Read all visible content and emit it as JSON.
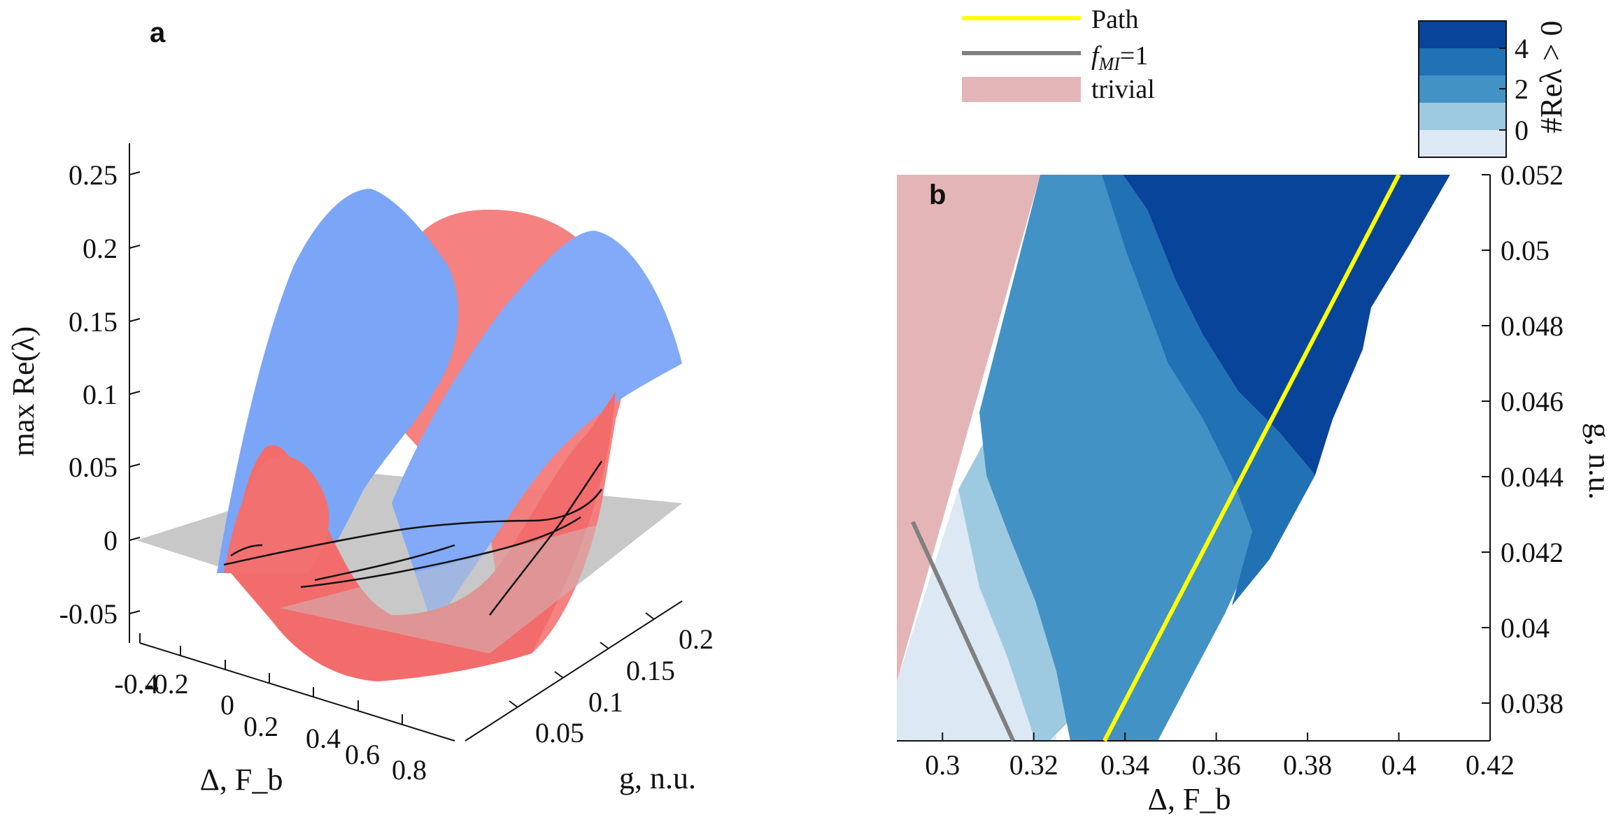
{
  "panel_a": {
    "letter": "a",
    "chart_data": {
      "type": "surface",
      "title": "",
      "zlabel": "max Re(λ)",
      "xlabel": "Δ, F_b",
      "ylabel": "g, n.u.",
      "x_ticks": [
        "-0.4",
        "-0.2",
        "0",
        "0.2",
        "0.4",
        "0.6",
        "0.8"
      ],
      "y_ticks": [
        "0.05",
        "0.1",
        "0.15",
        "0.2"
      ],
      "z_ticks": [
        "-0.05",
        "0",
        "0.05",
        "0.1",
        "0.15",
        "0.2",
        "0.25"
      ],
      "xlim": [
        -0.4,
        0.8
      ],
      "ylim": [
        0.0,
        0.22
      ],
      "zlim": [
        -0.07,
        0.27
      ],
      "zero_plane": 0,
      "surfaces": [
        {
          "name": "surface-1",
          "color": "#7aa3f5"
        },
        {
          "name": "surface-2",
          "color": "#f46f6f"
        }
      ],
      "plane_color": "#c8c8c8"
    }
  },
  "panel_b": {
    "letter": "b",
    "chart_data": {
      "type": "heatmap",
      "xlabel": "Δ, F_b",
      "ylabel": "g, n.u.",
      "xlim": [
        0.29,
        0.42
      ],
      "ylim": [
        0.037,
        0.052
      ],
      "x_ticks": [
        0.3,
        0.32,
        0.34,
        0.36,
        0.38,
        0.4,
        0.42
      ],
      "y_ticks": [
        0.038,
        0.04,
        0.042,
        0.044,
        0.046,
        0.048,
        0.05,
        0.052
      ],
      "x_tick_labels": [
        "0.3",
        "0.32",
        "0.34",
        "0.36",
        "0.38",
        "0.4",
        "0.42"
      ],
      "y_tick_labels": [
        "0.038",
        "0.04",
        "0.042",
        "0.044",
        "0.046",
        "0.048",
        "0.05",
        "0.052"
      ],
      "regions": {
        "trivial": {
          "color": "#e4b5b7"
        },
        "level0": {
          "color": "#dce8f4"
        },
        "level1": {
          "color": "#9ecae1"
        },
        "level2": {
          "color": "#4292c6"
        },
        "level3": {
          "color": "#2171b5"
        },
        "level4": {
          "color": "#08449a"
        }
      },
      "path_line": {
        "name": "Path",
        "color": "#ffff00",
        "points": [
          [
            0.3355,
            0.037
          ],
          [
            0.4,
            0.052
          ]
        ]
      },
      "fmi_line": {
        "name": "f_MI=1",
        "color": "#808080",
        "points": [
          [
            0.2935,
            0.0428
          ],
          [
            0.3155,
            0.037
          ]
        ]
      },
      "colorbar": {
        "label": "#Reλ > 0",
        "tick_labels": [
          "0",
          "2",
          "4"
        ],
        "colors": [
          "#dce8f4",
          "#9ecae1",
          "#4292c6",
          "#2171b5",
          "#08449a"
        ]
      },
      "legend": [
        {
          "label": "Path",
          "color": "#ffff00",
          "kind": "line"
        },
        {
          "label_main": "f",
          "label_sub": "MI",
          "label_tail": "=1",
          "color": "#808080",
          "kind": "line"
        },
        {
          "label": "trivial",
          "color": "#e4b5b7",
          "kind": "patch"
        }
      ]
    }
  }
}
